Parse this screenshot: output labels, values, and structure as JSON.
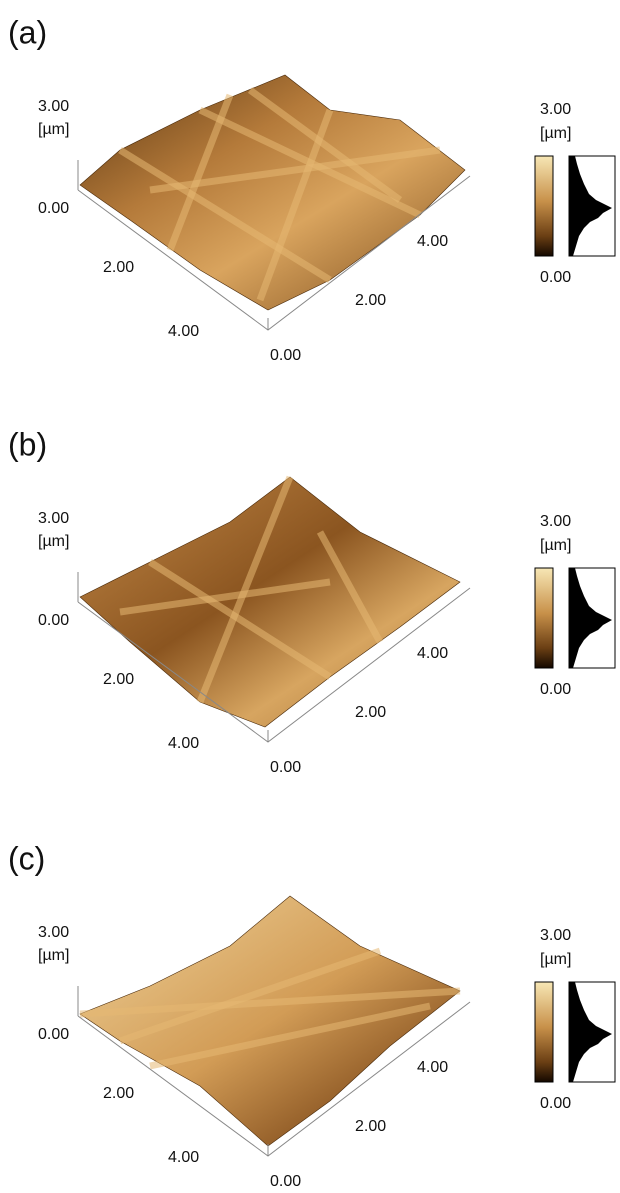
{
  "panels": [
    {
      "label": "(a)",
      "z_labels": [
        "3.00",
        "[µm]",
        "0.00"
      ],
      "left_axis_labels": [
        "2.00",
        "4.00"
      ],
      "right_axis_labels": [
        "0.00",
        "2.00",
        "4.00"
      ],
      "colorbar_labels": [
        "3.00",
        "[µm]",
        "0.00"
      ]
    },
    {
      "label": "(b)",
      "z_labels": [
        "3.00",
        "[µm]",
        "0.00"
      ],
      "left_axis_labels": [
        "2.00",
        "4.00"
      ],
      "right_axis_labels": [
        "0.00",
        "2.00",
        "4.00"
      ],
      "colorbar_labels": [
        "3.00",
        "[µm]",
        "0.00"
      ]
    },
    {
      "label": "(c)",
      "z_labels": [
        "3.00",
        "[µm]",
        "0.00"
      ],
      "left_axis_labels": [
        "2.00",
        "4.00"
      ],
      "right_axis_labels": [
        "0.00",
        "2.00",
        "4.00"
      ],
      "colorbar_labels": [
        "3.00",
        "[µm]",
        "0.00"
      ]
    }
  ]
}
